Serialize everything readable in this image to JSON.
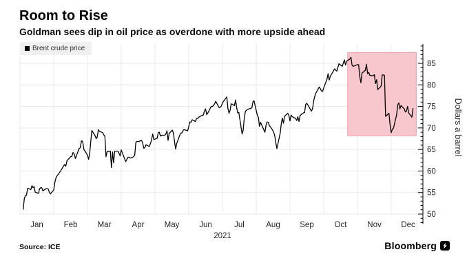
{
  "chart_data": {
    "type": "line",
    "title": "Room to Rise",
    "subtitle": "Goldman sees dip in oil price as overdone with more upside ahead",
    "legend": {
      "label": "Brent crude price",
      "swatch_color": "#000000"
    },
    "x_axis": {
      "year_label": "2021",
      "tick_labels": [
        "Jan",
        "Feb",
        "Mar",
        "Apr",
        "May",
        "Jun",
        "Jul",
        "Aug",
        "Sep",
        "Oct",
        "Nov",
        "Dec"
      ]
    },
    "y_axis": {
      "label": "Dollars a barrel",
      "ticks": [
        50,
        55,
        60,
        65,
        70,
        75,
        80,
        85
      ],
      "range": [
        48,
        89
      ],
      "side": "right"
    },
    "grid": {
      "on": true,
      "color": "#e9e9e9"
    },
    "highlight_region": {
      "start": "10-23",
      "end": "12-24",
      "y_min": 68.2,
      "y_max": 87.5,
      "fill": "#f8c7ce",
      "border": "#ef9ba8"
    },
    "series": [
      {
        "name": "Brent crude price",
        "color": "#000000",
        "points": [
          [
            "01-04",
            51.1
          ],
          [
            "01-05",
            53.6
          ],
          [
            "01-06",
            54.3
          ],
          [
            "01-07",
            54.4
          ],
          [
            "01-08",
            56.0
          ],
          [
            "01-11",
            55.7
          ],
          [
            "01-12",
            56.6
          ],
          [
            "01-13",
            56.1
          ],
          [
            "01-14",
            56.4
          ],
          [
            "01-15",
            55.1
          ],
          [
            "01-18",
            54.8
          ],
          [
            "01-19",
            55.9
          ],
          [
            "01-20",
            56.1
          ],
          [
            "01-21",
            56.1
          ],
          [
            "01-22",
            55.4
          ],
          [
            "01-25",
            55.9
          ],
          [
            "01-26",
            55.9
          ],
          [
            "01-27",
            55.8
          ],
          [
            "01-28",
            55.0
          ],
          [
            "01-29",
            54.7
          ],
          [
            "02-01",
            55.6
          ],
          [
            "02-02",
            57.5
          ],
          [
            "02-03",
            58.5
          ],
          [
            "02-04",
            59.0
          ],
          [
            "02-05",
            59.3
          ],
          [
            "02-08",
            60.6
          ],
          [
            "02-09",
            61.1
          ],
          [
            "02-10",
            61.5
          ],
          [
            "02-11",
            61.1
          ],
          [
            "02-12",
            62.4
          ],
          [
            "02-15",
            63.3
          ],
          [
            "02-16",
            63.4
          ],
          [
            "02-17",
            64.3
          ],
          [
            "02-18",
            63.9
          ],
          [
            "02-19",
            62.9
          ],
          [
            "02-22",
            65.2
          ],
          [
            "02-23",
            65.4
          ],
          [
            "02-24",
            67.0
          ],
          [
            "02-25",
            66.9
          ],
          [
            "02-26",
            65.0
          ],
          [
            "03-01",
            63.7
          ],
          [
            "03-02",
            62.7
          ],
          [
            "03-03",
            64.1
          ],
          [
            "03-04",
            66.7
          ],
          [
            "03-05",
            69.4
          ],
          [
            "03-08",
            68.2
          ],
          [
            "03-09",
            67.5
          ],
          [
            "03-10",
            67.9
          ],
          [
            "03-11",
            69.6
          ],
          [
            "03-12",
            69.2
          ],
          [
            "03-15",
            68.9
          ],
          [
            "03-16",
            68.4
          ],
          [
            "03-17",
            68.0
          ],
          [
            "03-18",
            63.3
          ],
          [
            "03-19",
            64.5
          ],
          [
            "03-22",
            64.6
          ],
          [
            "03-23",
            60.8
          ],
          [
            "03-24",
            64.4
          ],
          [
            "03-25",
            61.9
          ],
          [
            "03-26",
            64.6
          ],
          [
            "03-29",
            64.6
          ],
          [
            "03-30",
            64.1
          ],
          [
            "03-31",
            63.5
          ],
          [
            "04-01",
            64.9
          ],
          [
            "04-05",
            62.2
          ],
          [
            "04-06",
            62.7
          ],
          [
            "04-07",
            63.2
          ],
          [
            "04-08",
            63.2
          ],
          [
            "04-09",
            63.0
          ],
          [
            "04-12",
            63.3
          ],
          [
            "04-13",
            63.7
          ],
          [
            "04-14",
            66.6
          ],
          [
            "04-15",
            66.9
          ],
          [
            "04-16",
            66.8
          ],
          [
            "04-19",
            67.1
          ],
          [
            "04-20",
            66.6
          ],
          [
            "04-21",
            65.3
          ],
          [
            "04-22",
            65.4
          ],
          [
            "04-23",
            66.1
          ],
          [
            "04-26",
            65.7
          ],
          [
            "04-27",
            66.4
          ],
          [
            "04-28",
            67.3
          ],
          [
            "04-29",
            68.6
          ],
          [
            "04-30",
            67.3
          ],
          [
            "05-03",
            67.6
          ],
          [
            "05-04",
            68.9
          ],
          [
            "05-05",
            69.0
          ],
          [
            "05-06",
            68.1
          ],
          [
            "05-07",
            68.3
          ],
          [
            "05-10",
            68.3
          ],
          [
            "05-11",
            68.6
          ],
          [
            "05-12",
            69.3
          ],
          [
            "05-13",
            67.1
          ],
          [
            "05-14",
            68.7
          ],
          [
            "05-17",
            69.5
          ],
          [
            "05-18",
            68.7
          ],
          [
            "05-19",
            66.7
          ],
          [
            "05-20",
            65.1
          ],
          [
            "05-21",
            66.4
          ],
          [
            "05-24",
            68.5
          ],
          [
            "05-25",
            68.8
          ],
          [
            "05-26",
            68.9
          ],
          [
            "05-27",
            69.5
          ],
          [
            "05-28",
            69.6
          ],
          [
            "05-31",
            69.3
          ],
          [
            "06-01",
            70.3
          ],
          [
            "06-02",
            71.4
          ],
          [
            "06-03",
            71.3
          ],
          [
            "06-04",
            71.9
          ],
          [
            "06-07",
            71.5
          ],
          [
            "06-08",
            72.2
          ],
          [
            "06-09",
            72.2
          ],
          [
            "06-10",
            72.5
          ],
          [
            "06-11",
            72.7
          ],
          [
            "06-14",
            73.0
          ],
          [
            "06-15",
            74.0
          ],
          [
            "06-16",
            74.4
          ],
          [
            "06-17",
            73.1
          ],
          [
            "06-18",
            73.5
          ],
          [
            "06-21",
            75.0
          ],
          [
            "06-22",
            75.0
          ],
          [
            "06-23",
            75.2
          ],
          [
            "06-24",
            75.6
          ],
          [
            "06-25",
            76.2
          ],
          [
            "06-28",
            74.7
          ],
          [
            "06-29",
            74.8
          ],
          [
            "06-30",
            75.1
          ],
          [
            "07-01",
            75.8
          ],
          [
            "07-02",
            76.2
          ],
          [
            "07-05",
            77.2
          ],
          [
            "07-06",
            74.5
          ],
          [
            "07-07",
            73.4
          ],
          [
            "07-08",
            74.1
          ],
          [
            "07-09",
            75.6
          ],
          [
            "07-12",
            75.2
          ],
          [
            "07-13",
            76.5
          ],
          [
            "07-14",
            74.8
          ],
          [
            "07-15",
            73.5
          ],
          [
            "07-16",
            73.6
          ],
          [
            "07-19",
            68.6
          ],
          [
            "07-20",
            69.4
          ],
          [
            "07-21",
            72.2
          ],
          [
            "07-22",
            73.8
          ],
          [
            "07-23",
            74.1
          ],
          [
            "07-26",
            74.5
          ],
          [
            "07-27",
            74.5
          ],
          [
            "07-28",
            74.7
          ],
          [
            "07-29",
            76.1
          ],
          [
            "07-30",
            76.3
          ],
          [
            "08-02",
            72.9
          ],
          [
            "08-03",
            72.4
          ],
          [
            "08-04",
            70.4
          ],
          [
            "08-05",
            71.3
          ],
          [
            "08-06",
            70.7
          ],
          [
            "08-09",
            69.0
          ],
          [
            "08-10",
            70.6
          ],
          [
            "08-11",
            71.4
          ],
          [
            "08-12",
            71.3
          ],
          [
            "08-13",
            70.6
          ],
          [
            "08-16",
            69.5
          ],
          [
            "08-17",
            69.0
          ],
          [
            "08-18",
            68.2
          ],
          [
            "08-19",
            66.5
          ],
          [
            "08-20",
            65.2
          ],
          [
            "08-23",
            68.8
          ],
          [
            "08-24",
            71.0
          ],
          [
            "08-25",
            72.3
          ],
          [
            "08-26",
            71.1
          ],
          [
            "08-27",
            72.7
          ],
          [
            "08-30",
            73.4
          ],
          [
            "08-31",
            72.9
          ],
          [
            "09-01",
            71.6
          ],
          [
            "09-02",
            73.0
          ],
          [
            "09-03",
            72.6
          ],
          [
            "09-06",
            72.2
          ],
          [
            "09-07",
            71.7
          ],
          [
            "09-08",
            72.6
          ],
          [
            "09-09",
            71.5
          ],
          [
            "09-10",
            72.9
          ],
          [
            "09-13",
            73.5
          ],
          [
            "09-14",
            73.6
          ],
          [
            "09-15",
            75.5
          ],
          [
            "09-16",
            75.7
          ],
          [
            "09-17",
            75.3
          ],
          [
            "09-20",
            73.9
          ],
          [
            "09-21",
            74.4
          ],
          [
            "09-22",
            76.2
          ],
          [
            "09-23",
            77.3
          ],
          [
            "09-24",
            78.1
          ],
          [
            "09-27",
            79.5
          ],
          [
            "09-28",
            79.1
          ],
          [
            "09-29",
            78.6
          ],
          [
            "09-30",
            78.5
          ],
          [
            "10-01",
            79.3
          ],
          [
            "10-04",
            81.3
          ],
          [
            "10-05",
            82.6
          ],
          [
            "10-06",
            81.1
          ],
          [
            "10-07",
            82.0
          ],
          [
            "10-08",
            82.4
          ],
          [
            "10-11",
            83.7
          ],
          [
            "10-12",
            83.4
          ],
          [
            "10-13",
            83.2
          ],
          [
            "10-14",
            84.0
          ],
          [
            "10-15",
            84.9
          ],
          [
            "10-18",
            84.3
          ],
          [
            "10-19",
            85.1
          ],
          [
            "10-20",
            85.8
          ],
          [
            "10-21",
            84.6
          ],
          [
            "10-22",
            85.5
          ],
          [
            "10-25",
            86.0
          ],
          [
            "10-26",
            86.4
          ],
          [
            "10-27",
            84.6
          ],
          [
            "10-28",
            84.3
          ],
          [
            "10-29",
            84.4
          ],
          [
            "11-01",
            84.7
          ],
          [
            "11-02",
            84.7
          ],
          [
            "11-03",
            82.0
          ],
          [
            "11-04",
            80.5
          ],
          [
            "11-05",
            82.7
          ],
          [
            "11-08",
            83.4
          ],
          [
            "11-09",
            84.8
          ],
          [
            "11-10",
            82.6
          ],
          [
            "11-11",
            82.9
          ],
          [
            "11-12",
            82.2
          ],
          [
            "11-15",
            82.1
          ],
          [
            "11-16",
            82.4
          ],
          [
            "11-17",
            80.3
          ],
          [
            "11-18",
            81.2
          ],
          [
            "11-19",
            78.9
          ],
          [
            "11-22",
            79.7
          ],
          [
            "11-23",
            82.3
          ],
          [
            "11-24",
            82.3
          ],
          [
            "11-25",
            82.2
          ],
          [
            "11-26",
            72.7
          ],
          [
            "11-29",
            73.4
          ],
          [
            "11-30",
            70.6
          ],
          [
            "12-01",
            68.9
          ],
          [
            "12-02",
            69.7
          ],
          [
            "12-03",
            69.9
          ],
          [
            "12-06",
            73.1
          ],
          [
            "12-07",
            75.4
          ],
          [
            "12-08",
            75.8
          ],
          [
            "12-09",
            74.4
          ],
          [
            "12-10",
            75.2
          ],
          [
            "12-13",
            74.4
          ],
          [
            "12-14",
            73.7
          ],
          [
            "12-15",
            73.9
          ],
          [
            "12-16",
            75.0
          ],
          [
            "12-17",
            73.5
          ],
          [
            "12-20",
            72.5
          ],
          [
            "12-21",
            74.5
          ]
        ]
      }
    ],
    "source_label": "Source: ICE",
    "brand": "Bloomberg"
  }
}
